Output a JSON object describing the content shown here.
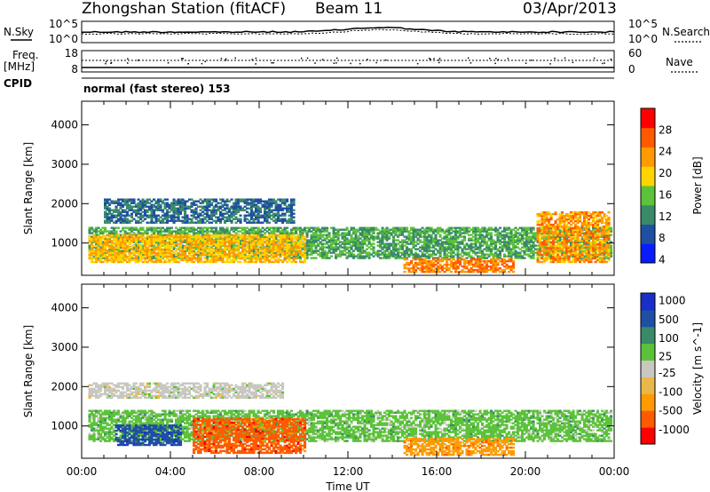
{
  "header": {
    "station": "Zhongshan Station (fitACF)",
    "beam": "Beam 11",
    "date": "03/Apr/2013"
  },
  "top_panels": {
    "nsky_label": "N.Sky",
    "nsearch_label": "N.Search",
    "noise_ticks_left": [
      "10^5",
      "10^0"
    ],
    "noise_ticks_right": [
      "10^5",
      "10^0"
    ],
    "freq_label_1": "Freq.",
    "freq_label_2": "[MHz]",
    "freq_ticks": [
      "18",
      "8"
    ],
    "nave_label": "Nave",
    "nave_ticks": [
      "60",
      "0"
    ],
    "cpid_label": "CPID",
    "cpid_value": "normal (fast stereo) 153"
  },
  "colors": {
    "power_scale": [
      "#0a1cff",
      "#1f4fa3",
      "#3a8a6a",
      "#5cc23a",
      "#ffd400",
      "#ff9a00",
      "#ff5a00",
      "#ff0000"
    ],
    "velocity_scale": [
      "#ff0000",
      "#ff5a00",
      "#ff9a00",
      "#e8b84a",
      "#c8c8c0",
      "#5cc23a",
      "#3a8a6a",
      "#1f4fa3",
      "#1a2ec8"
    ]
  },
  "chart_data": [
    {
      "type": "heatmap",
      "title": "Power",
      "ylabel": "Slant Range [km]",
      "y_ticks": [
        "4000",
        "3000",
        "2000",
        "1000"
      ],
      "ylim": [
        180,
        4600
      ],
      "x_ticks": [
        "00:00",
        "04:00",
        "08:00",
        "12:00",
        "16:00",
        "20:00",
        "00:00"
      ],
      "xlim_hours": [
        0,
        24
      ],
      "colorbar_label": "Power [dB]",
      "colorbar_ticks": [
        "28",
        "24",
        "20",
        "16",
        "12",
        "8",
        "4"
      ],
      "colorbar_range": [
        0,
        30
      ],
      "echo_bands": [
        {
          "t_start": 0.3,
          "t_end": 23.9,
          "r_min": 600,
          "r_max": 1400,
          "level": 12
        },
        {
          "t_start": 0.3,
          "t_end": 10.0,
          "r_min": 500,
          "r_max": 1200,
          "level": 20
        },
        {
          "t_start": 1.0,
          "t_end": 9.5,
          "r_min": 1500,
          "r_max": 2100,
          "level": 8
        },
        {
          "t_start": 14.5,
          "t_end": 19.5,
          "r_min": 250,
          "r_max": 600,
          "level": 24
        },
        {
          "t_start": 20.5,
          "t_end": 23.8,
          "r_min": 500,
          "r_max": 1800,
          "level": 22
        }
      ]
    },
    {
      "type": "heatmap",
      "title": "Velocity",
      "ylabel": "Slant Range [km]",
      "y_ticks": [
        "4000",
        "3000",
        "2000",
        "1000"
      ],
      "ylim": [
        180,
        4600
      ],
      "x_ticks": [
        "00:00",
        "04:00",
        "08:00",
        "12:00",
        "16:00",
        "20:00",
        "00:00"
      ],
      "xlabel": "Time UT",
      "xlim_hours": [
        0,
        24
      ],
      "colorbar_label": "Velocity [m s^-1]",
      "colorbar_ticks": [
        "1000",
        "500",
        "100",
        "25",
        "-25",
        "-100",
        "-500",
        "-1000"
      ],
      "echo_bands": [
        {
          "t_start": 0.3,
          "t_end": 23.9,
          "r_min": 600,
          "r_max": 1400,
          "level": 100
        },
        {
          "t_start": 5.0,
          "t_end": 10.0,
          "r_min": 300,
          "r_max": 1200,
          "level": -500
        },
        {
          "t_start": 1.5,
          "t_end": 4.5,
          "r_min": 500,
          "r_max": 1000,
          "level": 1000
        },
        {
          "t_start": 0.3,
          "t_end": 9.0,
          "r_min": 1700,
          "r_max": 2100,
          "level": 0
        },
        {
          "t_start": 14.5,
          "t_end": 19.5,
          "r_min": 250,
          "r_max": 700,
          "level": -100
        }
      ]
    }
  ]
}
